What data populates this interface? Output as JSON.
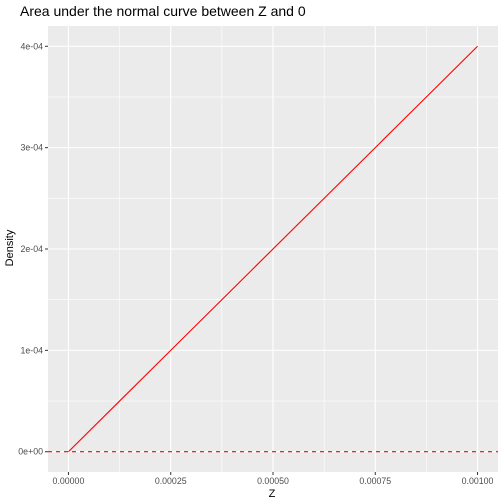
{
  "chart_data": {
    "type": "line",
    "title": "Area under the normal curve between Z and 0",
    "xlabel": "Z",
    "ylabel": "Density",
    "xlim": [
      -5e-05,
      0.00105
    ],
    "ylim": [
      -2e-05,
      0.00042
    ],
    "x_ticks": [
      0,
      0.00025,
      0.0005,
      0.00075,
      0.001
    ],
    "x_tick_labels": [
      "0.00000",
      "0.00025",
      "0.00050",
      "0.00075",
      "0.00100"
    ],
    "y_ticks": [
      0,
      0.0001,
      0.0002,
      0.0003,
      0.0004
    ],
    "y_tick_labels": [
      "0e+00",
      "1e-04",
      "2e-04",
      "3e-04",
      "4e-04"
    ],
    "grid": true,
    "series": [
      {
        "color": "#ff0000",
        "style": "solid",
        "x": [
          0,
          0.001
        ],
        "y": [
          0,
          0.0004
        ]
      }
    ],
    "reference_lines": [
      {
        "orientation": "horizontal",
        "y": 0,
        "color": "#ff0000",
        "style": "dashed"
      }
    ],
    "panel_color": "#ebebeb",
    "grid_color": "#ffffff"
  }
}
